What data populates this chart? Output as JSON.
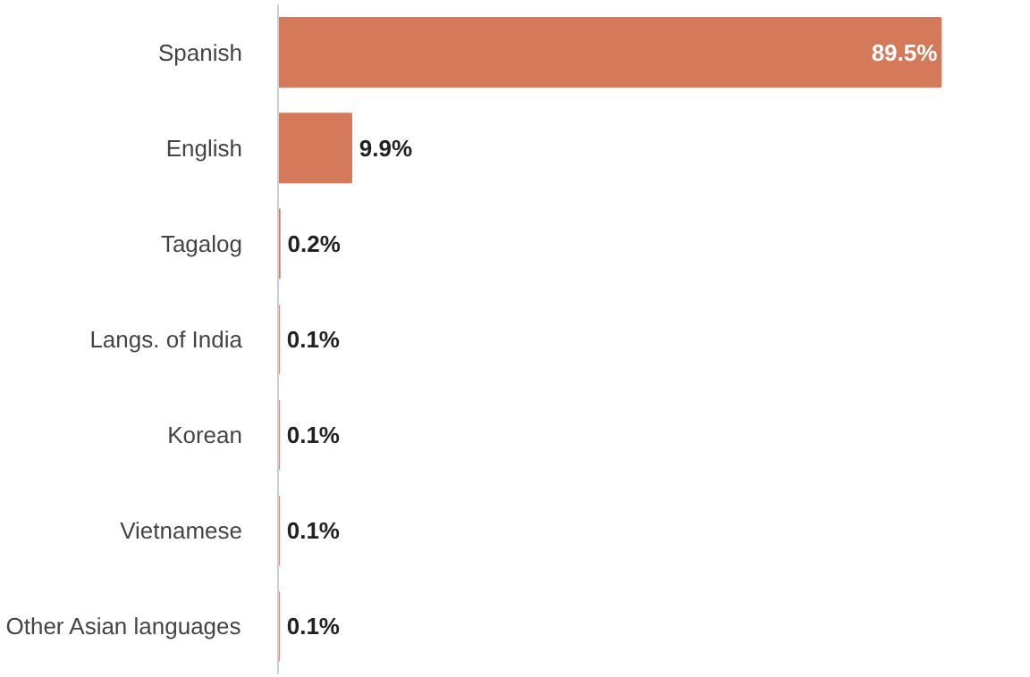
{
  "chart_data": {
    "type": "bar",
    "orientation": "horizontal",
    "categories": [
      "Spanish",
      "English",
      "Tagalog",
      "Langs. of India",
      "Korean",
      "Vietnamese",
      "Other Asian languages"
    ],
    "values": [
      89.5,
      9.9,
      0.2,
      0.1,
      0.1,
      0.1,
      0.1
    ],
    "value_labels": [
      "89.5%",
      "9.9%",
      "0.2%",
      "0.1%",
      "0.1%",
      "0.1%",
      "0.1%"
    ],
    "color": "#d4795a",
    "grid": false
  }
}
